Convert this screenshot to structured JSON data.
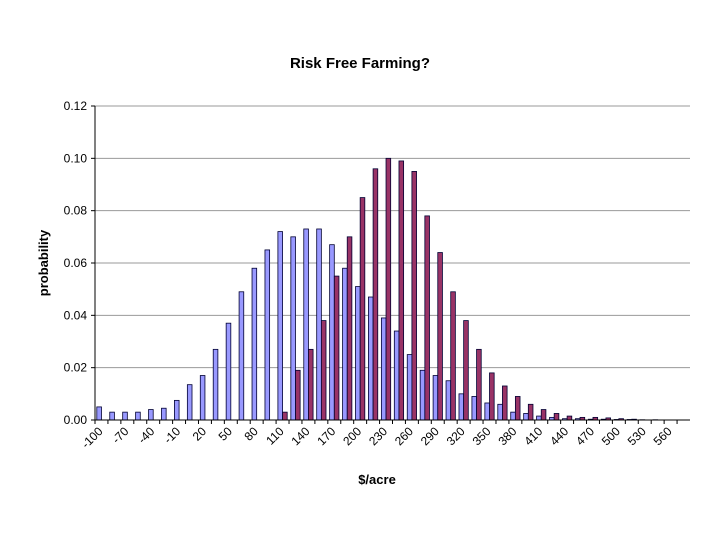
{
  "chart_data": {
    "type": "bar",
    "title": "Risk Free Farming?",
    "xlabel": "$/acre",
    "ylabel": "probability",
    "categories": [
      "-100",
      null,
      "-70",
      null,
      "-40",
      null,
      "-10",
      null,
      "20",
      null,
      "50",
      null,
      "80",
      null,
      "110",
      null,
      "140",
      null,
      "170",
      null,
      "200",
      null,
      "230",
      null,
      "260",
      null,
      "290",
      null,
      "320",
      null,
      "350",
      null,
      "380",
      null,
      "410",
      null,
      "440",
      null,
      "470",
      null,
      "500",
      null,
      "530",
      null,
      "560",
      null
    ],
    "series": [
      {
        "color": "#9999ff",
        "values": [
          0.005,
          0.003,
          0.003,
          0.003,
          0.004,
          0.0045,
          0.0075,
          0.0135,
          0.017,
          0.027,
          0.037,
          0.049,
          0.058,
          0.065,
          0.072,
          0.07,
          0.073,
          0.073,
          0.067,
          0.058,
          0.051,
          0.047,
          0.039,
          0.034,
          0.025,
          0.019,
          0.017,
          0.015,
          0.01,
          0.009,
          0.0065,
          0.006,
          0.003,
          0.0025,
          0.0015,
          0.001,
          0.0005,
          0.0005,
          0.0003,
          0.0003,
          0.0002,
          0.0002,
          0.0001,
          0.0001,
          0,
          0
        ]
      },
      {
        "color": "#993366",
        "values": [
          0,
          0,
          0,
          0,
          0,
          0,
          0,
          0,
          0,
          0,
          0,
          0,
          0,
          0,
          0.003,
          0.019,
          0.027,
          0.038,
          0.055,
          0.07,
          0.085,
          0.096,
          0.1,
          0.099,
          0.095,
          0.078,
          0.064,
          0.049,
          0.038,
          0.027,
          0.018,
          0.013,
          0.009,
          0.006,
          0.004,
          0.0025,
          0.0015,
          0.001,
          0.001,
          0.0008,
          0.0005,
          0.0003,
          0,
          0,
          0,
          0
        ]
      }
    ],
    "ylim": [
      0,
      0.12
    ],
    "yticks": [
      {
        "value": 0,
        "label": "0.00"
      },
      {
        "value": 0.02,
        "label": "0.02"
      },
      {
        "value": 0.04,
        "label": "0.04"
      },
      {
        "value": 0.06,
        "label": "0.06"
      },
      {
        "value": 0.08,
        "label": "0.08"
      },
      {
        "value": 0.1,
        "label": "0.10"
      },
      {
        "value": 0.12,
        "label": "0.12"
      }
    ],
    "grid": true
  }
}
